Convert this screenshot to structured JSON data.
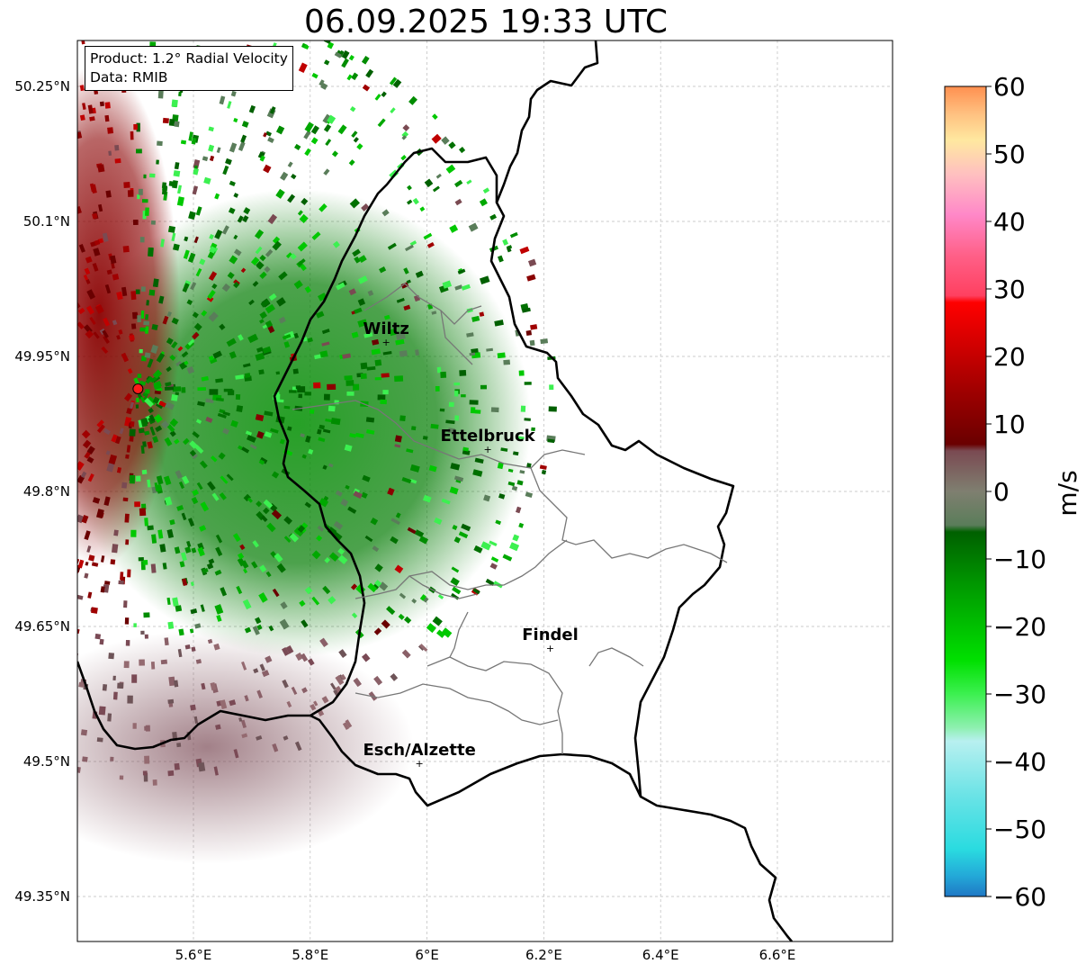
{
  "title": "06.09.2025 19:33 UTC",
  "info_box": {
    "product": "Product: 1.2° Radial Velocity",
    "data": "Data: RMIB"
  },
  "map": {
    "lon_range": [
      5.4,
      6.8
    ],
    "lat_range": [
      49.3,
      50.3
    ],
    "x_ticks": [
      {
        "value": 5.6,
        "label": "5.6°E"
      },
      {
        "value": 5.8,
        "label": "5.8°E"
      },
      {
        "value": 6.0,
        "label": "6°E"
      },
      {
        "value": 6.2,
        "label": "6.2°E"
      },
      {
        "value": 6.4,
        "label": "6.4°E"
      },
      {
        "value": 6.6,
        "label": "6.6°E"
      }
    ],
    "y_ticks": [
      {
        "value": 50.25,
        "label": "50.25°N"
      },
      {
        "value": 50.1,
        "label": "50.1°N"
      },
      {
        "value": 49.95,
        "label": "49.95°N"
      },
      {
        "value": 49.8,
        "label": "49.8°N"
      },
      {
        "value": 49.65,
        "label": "49.65°N"
      },
      {
        "value": 49.5,
        "label": "49.5°N"
      },
      {
        "value": 49.35,
        "label": "49.35°N"
      }
    ],
    "grid": true,
    "radar_site": {
      "lon": 5.505,
      "lat": 49.914
    },
    "cities": [
      {
        "name": "Wiltz",
        "lon": 5.93,
        "lat": 49.966
      },
      {
        "name": "Ettelbruck",
        "lon": 6.104,
        "lat": 49.847
      },
      {
        "name": "Findel",
        "lon": 6.211,
        "lat": 49.626
      },
      {
        "name": "Esch/Alzette",
        "lon": 5.987,
        "lat": 49.498
      }
    ]
  },
  "colorbar": {
    "label": "m/s",
    "min": -60,
    "max": 60,
    "ticks": [
      {
        "value": 60,
        "label": "60"
      },
      {
        "value": 50,
        "label": "50"
      },
      {
        "value": 40,
        "label": "40"
      },
      {
        "value": 30,
        "label": "30"
      },
      {
        "value": 20,
        "label": "20"
      },
      {
        "value": 10,
        "label": "10"
      },
      {
        "value": 0,
        "label": "0"
      },
      {
        "value": -10,
        "label": "−10"
      },
      {
        "value": -20,
        "label": "−20"
      },
      {
        "value": -30,
        "label": "−30"
      },
      {
        "value": -40,
        "label": "−40"
      },
      {
        "value": -50,
        "label": "−50"
      },
      {
        "value": -60,
        "label": "−60"
      }
    ],
    "color_stops": [
      {
        "v": -60,
        "c": "#1f77c4"
      },
      {
        "v": -57,
        "c": "#23a8d8"
      },
      {
        "v": -53,
        "c": "#2adbe0"
      },
      {
        "v": -45,
        "c": "#6be3e6"
      },
      {
        "v": -37,
        "c": "#b8f0f0"
      },
      {
        "v": -35,
        "c": "#8ef0b0"
      },
      {
        "v": -30,
        "c": "#3cf050"
      },
      {
        "v": -25,
        "c": "#00e000"
      },
      {
        "v": -15,
        "c": "#00a000"
      },
      {
        "v": -6,
        "c": "#006000"
      },
      {
        "v": -5,
        "c": "#5a7d5a"
      },
      {
        "v": 0,
        "c": "#7f7f70"
      },
      {
        "v": 6,
        "c": "#7a4a52"
      },
      {
        "v": 7,
        "c": "#6a0000"
      },
      {
        "v": 15,
        "c": "#a00000"
      },
      {
        "v": 28,
        "c": "#ff0000"
      },
      {
        "v": 29,
        "c": "#ff4060"
      },
      {
        "v": 35,
        "c": "#ff6088"
      },
      {
        "v": 41,
        "c": "#ff88c8"
      },
      {
        "v": 47,
        "c": "#ffc0c0"
      },
      {
        "v": 52,
        "c": "#ffe8a0"
      },
      {
        "v": 56,
        "c": "#ffc080"
      },
      {
        "v": 60,
        "c": "#ff9050"
      }
    ]
  }
}
